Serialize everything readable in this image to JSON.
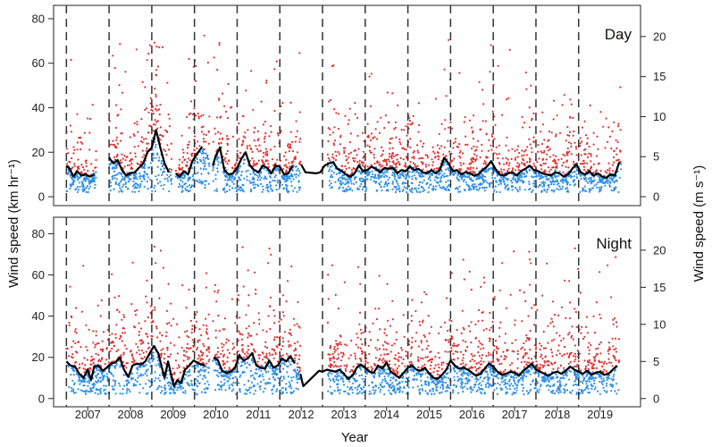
{
  "chart_data": [
    {
      "type": "scatter",
      "panel_label": "Day",
      "ylabel": "Wind speed (km hr⁻¹)",
      "ylabel_right": "Wind speed (m s⁻¹)",
      "xlabel": "Year",
      "ylim": [
        -4,
        86
      ],
      "yticks": [
        0,
        20,
        40,
        60,
        80
      ],
      "yticks_right": [
        0,
        5,
        10,
        15,
        20
      ],
      "x_years": [
        "2007",
        "2008",
        "2009",
        "2010",
        "2011",
        "2012",
        "2013",
        "2014",
        "2015",
        "2016",
        "2017",
        "2018",
        "2019"
      ],
      "xlim": [
        2006.2,
        2019.95
      ],
      "year_boundaries": [
        2006.5,
        2007.5,
        2008.5,
        2009.5,
        2010.5,
        2011.5,
        2012.5,
        2013.5,
        2014.5,
        2015.5,
        2016.5,
        2017.5,
        2018.5
      ],
      "gaps": [
        [
          2007.2,
          2007.5
        ],
        [
          2008.97,
          2009.06
        ],
        [
          2009.86,
          2009.93
        ],
        [
          2011.98,
          2012.62
        ]
      ],
      "series_colors": {
        "high": "#e23030",
        "low": "#2e8fe6",
        "mean_line": "#000000"
      },
      "mean_line": [
        [
          2006.5,
          14.0
        ],
        [
          2006.58,
          12.5
        ],
        [
          2006.66,
          9.0
        ],
        [
          2006.75,
          11.5
        ],
        [
          2006.85,
          9.5
        ],
        [
          2006.95,
          10.0
        ],
        [
          2007.05,
          9.0
        ],
        [
          2007.15,
          10.0
        ],
        [
          2007.5,
          17.5
        ],
        [
          2007.6,
          15.0
        ],
        [
          2007.7,
          16.5
        ],
        [
          2007.8,
          12.0
        ],
        [
          2007.9,
          9.5
        ],
        [
          2008.0,
          10.5
        ],
        [
          2008.1,
          11.0
        ],
        [
          2008.2,
          13.0
        ],
        [
          2008.3,
          15.0
        ],
        [
          2008.4,
          20.0
        ],
        [
          2008.5,
          22.0
        ],
        [
          2008.6,
          30.0
        ],
        [
          2008.7,
          22.0
        ],
        [
          2008.8,
          15.0
        ],
        [
          2008.9,
          11.0
        ],
        [
          2009.06,
          10.5
        ],
        [
          2009.15,
          9.0
        ],
        [
          2009.25,
          11.5
        ],
        [
          2009.35,
          10.0
        ],
        [
          2009.45,
          16.0
        ],
        [
          2009.55,
          19.0
        ],
        [
          2009.68,
          22.5
        ],
        [
          2009.93,
          14.0
        ],
        [
          2010.0,
          18.5
        ],
        [
          2010.1,
          22.0
        ],
        [
          2010.2,
          12.0
        ],
        [
          2010.3,
          10.0
        ],
        [
          2010.4,
          10.5
        ],
        [
          2010.5,
          13.0
        ],
        [
          2010.6,
          17.0
        ],
        [
          2010.7,
          20.0
        ],
        [
          2010.8,
          14.0
        ],
        [
          2010.9,
          12.0
        ],
        [
          2011.0,
          11.0
        ],
        [
          2011.1,
          14.0
        ],
        [
          2011.2,
          13.0
        ],
        [
          2011.3,
          10.5
        ],
        [
          2011.4,
          14.0
        ],
        [
          2011.5,
          13.5
        ],
        [
          2011.6,
          10.0
        ],
        [
          2011.7,
          10.5
        ],
        [
          2011.8,
          14.0
        ],
        [
          2012.0,
          14.5
        ],
        [
          2012.1,
          11.0
        ],
        [
          2012.35,
          10.5
        ],
        [
          2012.45,
          11.0
        ],
        [
          2012.55,
          14.0
        ],
        [
          2012.65,
          15.0
        ],
        [
          2012.75,
          15.5
        ],
        [
          2012.85,
          12.5
        ],
        [
          2012.95,
          11.5
        ],
        [
          2013.05,
          10.0
        ],
        [
          2013.15,
          9.0
        ],
        [
          2013.25,
          10.5
        ],
        [
          2013.35,
          14.0
        ],
        [
          2013.45,
          11.5
        ],
        [
          2013.55,
          12.0
        ],
        [
          2013.65,
          13.5
        ],
        [
          2013.75,
          12.5
        ],
        [
          2013.85,
          11.0
        ],
        [
          2013.95,
          13.0
        ],
        [
          2014.05,
          12.5
        ],
        [
          2014.15,
          13.0
        ],
        [
          2014.25,
          10.5
        ],
        [
          2014.35,
          12.0
        ],
        [
          2014.45,
          11.5
        ],
        [
          2014.55,
          13.5
        ],
        [
          2014.65,
          12.0
        ],
        [
          2014.75,
          12.5
        ],
        [
          2014.85,
          11.0
        ],
        [
          2014.95,
          10.5
        ],
        [
          2015.05,
          12.0
        ],
        [
          2015.15,
          10.5
        ],
        [
          2015.25,
          12.0
        ],
        [
          2015.35,
          17.5
        ],
        [
          2015.45,
          15.0
        ],
        [
          2015.55,
          11.5
        ],
        [
          2015.65,
          12.0
        ],
        [
          2015.75,
          10.0
        ],
        [
          2015.85,
          11.0
        ],
        [
          2015.95,
          10.5
        ],
        [
          2016.05,
          9.5
        ],
        [
          2016.15,
          10.0
        ],
        [
          2016.25,
          12.0
        ],
        [
          2016.35,
          13.5
        ],
        [
          2016.45,
          16.0
        ],
        [
          2016.55,
          12.5
        ],
        [
          2016.65,
          10.0
        ],
        [
          2016.75,
          9.5
        ],
        [
          2016.85,
          10.5
        ],
        [
          2016.95,
          11.0
        ],
        [
          2017.05,
          9.5
        ],
        [
          2017.15,
          11.5
        ],
        [
          2017.25,
          12.5
        ],
        [
          2017.35,
          14.0
        ],
        [
          2017.45,
          12.0
        ],
        [
          2017.55,
          11.5
        ],
        [
          2017.65,
          10.5
        ],
        [
          2017.75,
          10.0
        ],
        [
          2017.85,
          9.5
        ],
        [
          2017.95,
          11.0
        ],
        [
          2018.05,
          10.5
        ],
        [
          2018.15,
          9.0
        ],
        [
          2018.25,
          10.0
        ],
        [
          2018.35,
          12.5
        ],
        [
          2018.45,
          14.5
        ],
        [
          2018.55,
          11.0
        ],
        [
          2018.65,
          10.0
        ],
        [
          2018.75,
          11.5
        ],
        [
          2018.85,
          9.5
        ],
        [
          2018.95,
          10.5
        ],
        [
          2019.05,
          9.0
        ],
        [
          2019.15,
          8.5
        ],
        [
          2019.25,
          10.0
        ],
        [
          2019.35,
          9.5
        ],
        [
          2019.45,
          15.5
        ]
      ]
    },
    {
      "type": "scatter",
      "panel_label": "Night",
      "ylabel": "Wind speed (km hr⁻¹)",
      "ylabel_right": "Wind speed (m s⁻¹)",
      "xlabel": "Year",
      "ylim": [
        -4,
        88
      ],
      "yticks": [
        0,
        20,
        40,
        60,
        80
      ],
      "yticks_right": [
        0,
        5,
        10,
        15,
        20
      ],
      "x_years": [
        "2007",
        "2008",
        "2009",
        "2010",
        "2011",
        "2012",
        "2013",
        "2014",
        "2015",
        "2016",
        "2017",
        "2018",
        "2019"
      ],
      "xlim": [
        2006.2,
        2019.95
      ],
      "year_boundaries": [
        2006.5,
        2007.5,
        2008.5,
        2009.5,
        2010.5,
        2011.5,
        2012.5,
        2013.5,
        2014.5,
        2015.5,
        2016.5,
        2017.5,
        2018.5
      ],
      "gaps": [
        [
          2009.86,
          2009.93
        ],
        [
          2011.98,
          2012.62
        ]
      ],
      "series_colors": {
        "high": "#e23030",
        "low": "#2e8fe6",
        "mean_line": "#000000"
      },
      "mean_line": [
        [
          2006.5,
          18.0
        ],
        [
          2006.6,
          16.0
        ],
        [
          2006.7,
          15.5
        ],
        [
          2006.8,
          12.0
        ],
        [
          2006.9,
          10.0
        ],
        [
          2007.0,
          14.0
        ],
        [
          2007.08,
          9.0
        ],
        [
          2007.15,
          15.5
        ],
        [
          2007.25,
          16.0
        ],
        [
          2007.35,
          13.5
        ],
        [
          2007.45,
          15.0
        ],
        [
          2007.55,
          17.0
        ],
        [
          2007.65,
          17.5
        ],
        [
          2007.75,
          20.0
        ],
        [
          2007.85,
          14.0
        ],
        [
          2007.95,
          10.5
        ],
        [
          2008.05,
          16.0
        ],
        [
          2008.15,
          17.0
        ],
        [
          2008.25,
          16.5
        ],
        [
          2008.35,
          18.0
        ],
        [
          2008.45,
          22.0
        ],
        [
          2008.55,
          25.5
        ],
        [
          2008.65,
          22.0
        ],
        [
          2008.75,
          14.0
        ],
        [
          2008.8,
          10.0
        ],
        [
          2008.88,
          18.0
        ],
        [
          2008.95,
          12.0
        ],
        [
          2009.02,
          6.0
        ],
        [
          2009.1,
          9.0
        ],
        [
          2009.18,
          7.5
        ],
        [
          2009.28,
          14.0
        ],
        [
          2009.38,
          16.0
        ],
        [
          2009.48,
          18.5
        ],
        [
          2009.6,
          17.0
        ],
        [
          2009.75,
          16.0
        ],
        [
          2009.95,
          20.0
        ],
        [
          2010.05,
          18.5
        ],
        [
          2010.15,
          13.5
        ],
        [
          2010.25,
          12.5
        ],
        [
          2010.35,
          13.0
        ],
        [
          2010.45,
          15.0
        ],
        [
          2010.55,
          21.0
        ],
        [
          2010.65,
          18.5
        ],
        [
          2010.75,
          19.5
        ],
        [
          2010.85,
          22.0
        ],
        [
          2010.95,
          16.0
        ],
        [
          2011.05,
          15.0
        ],
        [
          2011.15,
          14.5
        ],
        [
          2011.25,
          18.5
        ],
        [
          2011.35,
          15.0
        ],
        [
          2011.45,
          16.0
        ],
        [
          2011.55,
          19.5
        ],
        [
          2011.65,
          18.0
        ],
        [
          2011.75,
          20.5
        ],
        [
          2011.85,
          17.0
        ],
        [
          2011.98,
          12.0
        ],
        [
          2012.05,
          6.0
        ],
        [
          2012.42,
          13.5
        ],
        [
          2012.5,
          13.0
        ],
        [
          2012.6,
          14.0
        ],
        [
          2012.7,
          13.5
        ],
        [
          2012.8,
          13.0
        ],
        [
          2012.9,
          14.0
        ],
        [
          2013.0,
          12.0
        ],
        [
          2013.1,
          9.5
        ],
        [
          2013.2,
          11.0
        ],
        [
          2013.3,
          15.0
        ],
        [
          2013.4,
          16.5
        ],
        [
          2013.5,
          15.0
        ],
        [
          2013.6,
          13.0
        ],
        [
          2013.7,
          12.5
        ],
        [
          2013.8,
          16.0
        ],
        [
          2013.9,
          14.5
        ],
        [
          2014.0,
          17.5
        ],
        [
          2014.1,
          13.0
        ],
        [
          2014.2,
          11.5
        ],
        [
          2014.3,
          10.0
        ],
        [
          2014.4,
          12.5
        ],
        [
          2014.5,
          15.0
        ],
        [
          2014.6,
          16.0
        ],
        [
          2014.7,
          14.0
        ],
        [
          2014.8,
          13.5
        ],
        [
          2014.9,
          15.0
        ],
        [
          2015.0,
          12.0
        ],
        [
          2015.1,
          10.0
        ],
        [
          2015.2,
          9.5
        ],
        [
          2015.3,
          11.5
        ],
        [
          2015.4,
          14.0
        ],
        [
          2015.5,
          18.5
        ],
        [
          2015.6,
          16.0
        ],
        [
          2015.7,
          14.5
        ],
        [
          2015.8,
          15.0
        ],
        [
          2015.9,
          14.0
        ],
        [
          2016.0,
          12.5
        ],
        [
          2016.1,
          11.0
        ],
        [
          2016.2,
          12.0
        ],
        [
          2016.3,
          14.5
        ],
        [
          2016.4,
          17.0
        ],
        [
          2016.5,
          15.5
        ],
        [
          2016.6,
          13.0
        ],
        [
          2016.7,
          11.5
        ],
        [
          2016.8,
          12.0
        ],
        [
          2016.9,
          13.0
        ],
        [
          2017.0,
          12.5
        ],
        [
          2017.1,
          11.0
        ],
        [
          2017.2,
          13.5
        ],
        [
          2017.3,
          15.0
        ],
        [
          2017.4,
          17.0
        ],
        [
          2017.5,
          14.0
        ],
        [
          2017.6,
          13.0
        ],
        [
          2017.7,
          12.0
        ],
        [
          2017.8,
          11.0
        ],
        [
          2017.9,
          12.5
        ],
        [
          2018.0,
          13.0
        ],
        [
          2018.1,
          12.0
        ],
        [
          2018.2,
          13.5
        ],
        [
          2018.3,
          15.5
        ],
        [
          2018.4,
          14.0
        ],
        [
          2018.5,
          13.0
        ],
        [
          2018.6,
          12.0
        ],
        [
          2018.7,
          13.5
        ],
        [
          2018.8,
          11.5
        ],
        [
          2018.9,
          12.5
        ],
        [
          2019.0,
          13.0
        ],
        [
          2019.1,
          11.5
        ],
        [
          2019.2,
          12.0
        ],
        [
          2019.3,
          14.0
        ],
        [
          2019.4,
          16.0
        ]
      ]
    }
  ]
}
